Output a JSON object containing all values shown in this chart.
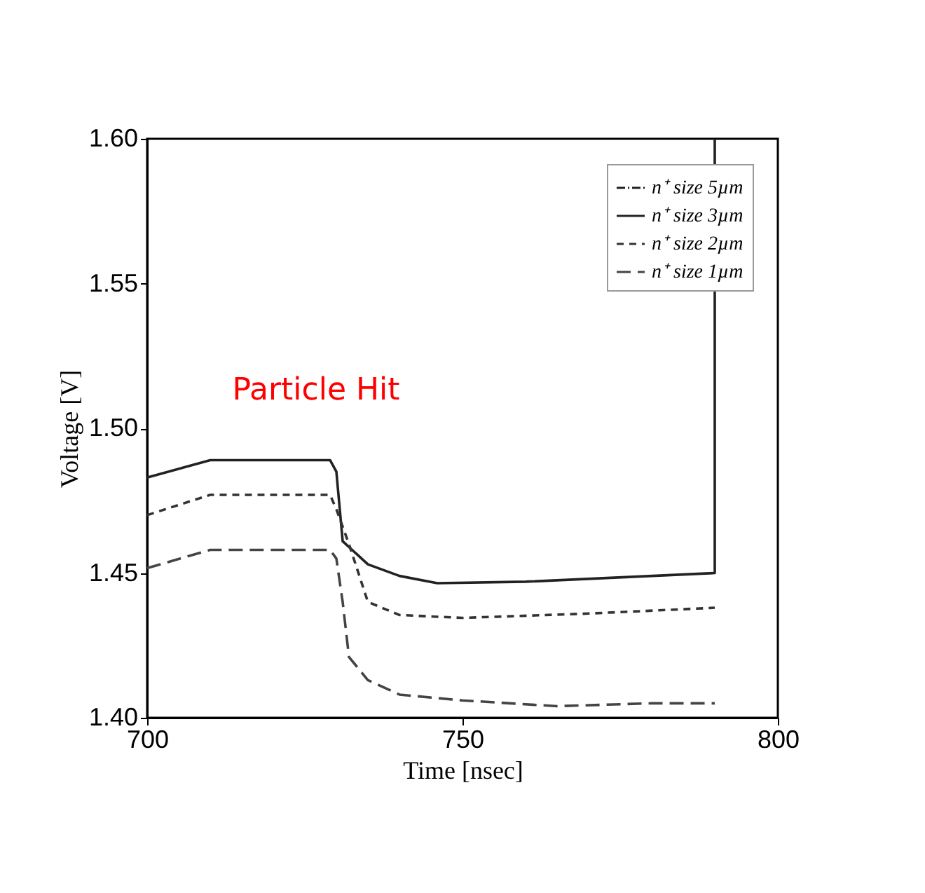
{
  "chart_data": {
    "type": "line",
    "xlabel": "Time [nsec]",
    "ylabel": "Voltage  [V]",
    "xlim": [
      700,
      800
    ],
    "xticks": [
      700,
      750,
      800
    ],
    "ylim": [
      1.4,
      1.6
    ],
    "yticks": [
      {
        "value": 1.4,
        "label": "1.40"
      },
      1.45,
      {
        "value": 1.5,
        "label": "1.50"
      },
      1.55,
      {
        "value": 1.6,
        "label": "1.60"
      }
    ],
    "grid": false,
    "legend": "top right",
    "marker": "none",
    "series": [
      {
        "name": "n⁺ size 5µm",
        "color": "#222222",
        "line_style": "dashdot"
      },
      {
        "name": "n⁺ size 3µm",
        "color": "#222222",
        "line_style": "solid",
        "x": [
          700,
          710,
          729,
          730,
          731,
          735,
          740,
          746,
          760,
          790,
          790
        ],
        "values": [
          1.483,
          1.489,
          1.489,
          1.485,
          1.461,
          1.453,
          1.449,
          1.4465,
          1.447,
          1.45,
          1.6
        ]
      },
      {
        "name": "n⁺ size 2µm",
        "color": "#333333",
        "line_style": "dashed",
        "x": [
          700,
          710,
          729,
          730,
          732,
          735,
          740,
          750,
          770,
          790
        ],
        "values": [
          1.47,
          1.477,
          1.477,
          1.472,
          1.46,
          1.44,
          1.4355,
          1.4345,
          1.436,
          1.438
        ]
      },
      {
        "name": "n⁺ size 1µm",
        "color": "#444444",
        "line_style": "longdashed",
        "x": [
          700,
          710,
          729,
          730,
          731,
          732,
          735,
          740,
          750,
          765,
          780,
          790
        ],
        "values": [
          1.4517,
          1.458,
          1.458,
          1.455,
          1.44,
          1.421,
          1.413,
          1.408,
          1.406,
          1.404,
          1.405,
          1.405
        ]
      }
    ],
    "annotations": [
      {
        "text": "Particle Hit",
        "x": 729,
        "y": 1.489
      }
    ]
  }
}
